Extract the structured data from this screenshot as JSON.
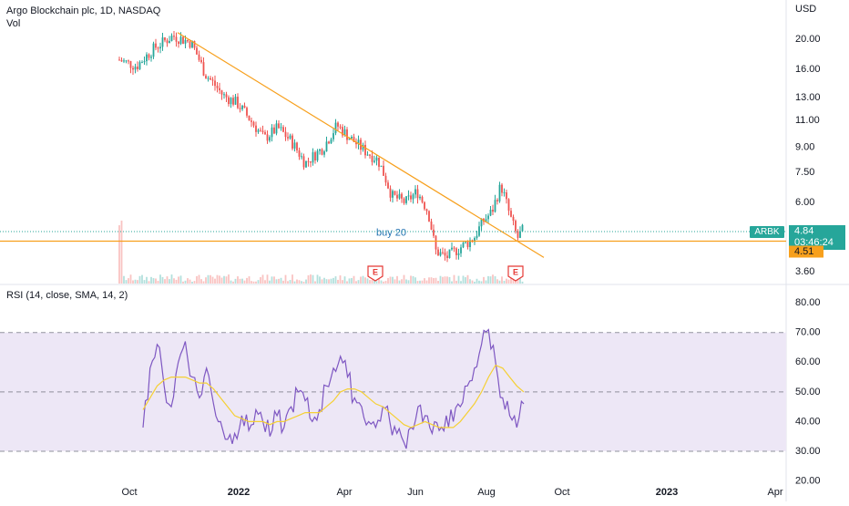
{
  "header": {
    "symbol_title": "Argo Blockchain plc, 1D, NASDAQ",
    "volume_label": "Vol"
  },
  "rsi_panel": {
    "label": "RSI (14, close, SMA, 14, 2)"
  },
  "colors": {
    "up": "#26a69a",
    "down": "#ef5350",
    "trendline": "#f7a01d",
    "rsi_line": "#7e57c2",
    "rsi_ma": "#f5d033",
    "rsi_band": "#ede7f6",
    "last_price_badge": "#26a69a",
    "level_badge": "#f7a01d",
    "earnings_marker": "#e53935"
  },
  "chart_data": [
    {
      "type": "candlestick",
      "title": "Argo Blockchain plc, 1D, NASDAQ",
      "y_axis_label": "USD",
      "y_scale": "log",
      "ylim": [
        3.1,
        24
      ],
      "y_ticks": [
        "20.00",
        "16.00",
        "13.00",
        "11.00",
        "9.00",
        "7.50",
        "6.00",
        "3.60"
      ],
      "x_ticks": [
        "Oct",
        "2022",
        "Apr",
        "Jun",
        "Aug",
        "Oct",
        "2023",
        "Apr"
      ],
      "last_price": {
        "label": "ARBK",
        "value": "4.84",
        "countdown": "03:46:24"
      },
      "horizontal_level": {
        "value": "4.51",
        "annotation": "buy 20"
      },
      "trendline": {
        "from": [
          "2021-11-15",
          21.0
        ],
        "to": [
          "2022-09-10",
          4.0
        ]
      },
      "earnings_markers": [
        "E",
        "E"
      ],
      "gridlines": false
    },
    {
      "type": "line",
      "title": "RSI (14, close, SMA, 14, 2)",
      "ylim": [
        20,
        80
      ],
      "y_ticks": [
        "80.00",
        "70.00",
        "60.00",
        "50.00",
        "40.00",
        "30.00",
        "20.00"
      ],
      "band": [
        30,
        70
      ],
      "series": [
        {
          "values": [
            38,
            58,
            66,
            52,
            45,
            60,
            67,
            55,
            48,
            58,
            46,
            40,
            34,
            36,
            42,
            37,
            44,
            40,
            35,
            42,
            38,
            45,
            50,
            47,
            40,
            44,
            52,
            58,
            62,
            55,
            48,
            45,
            40,
            38,
            45,
            40,
            36,
            33,
            38,
            45,
            42,
            36,
            37,
            42,
            40,
            45,
            52,
            58,
            66,
            71,
            60,
            48,
            42,
            38,
            46
          ]
        },
        {
          "values": [
            44,
            48,
            52,
            54,
            55,
            55,
            55,
            54,
            53,
            53,
            51,
            48,
            45,
            42,
            41,
            40,
            40,
            40,
            39,
            40,
            40,
            41,
            42,
            43,
            43,
            43,
            45,
            47,
            50,
            51,
            51,
            50,
            48,
            46,
            45,
            43,
            41,
            39,
            38,
            39,
            40,
            39,
            38,
            38,
            38,
            40,
            43,
            46,
            50,
            55,
            59,
            58,
            55,
            52,
            50
          ]
        }
      ]
    }
  ]
}
